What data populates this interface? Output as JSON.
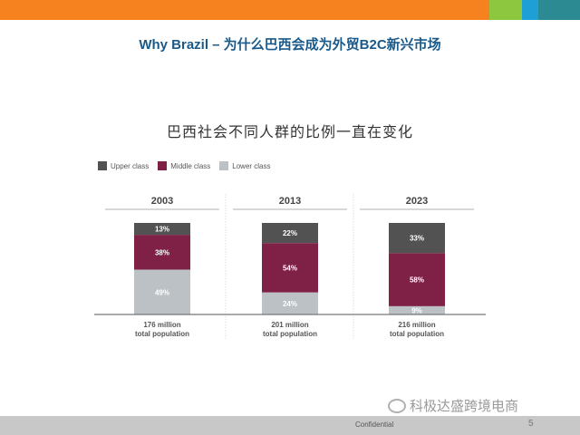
{
  "header": {
    "title": "Why Brazil – 为什么巴西会成为外贸B2C新兴市场"
  },
  "footer": {
    "confidential": "Confidential",
    "page_number": "5"
  },
  "watermark": {
    "text": "科极达盛跨境电商"
  },
  "colors": {
    "upper": "#525252",
    "middle": "#7f2046",
    "lower": "#bcc1c5",
    "topbar": "#f6821f"
  },
  "chart_data": {
    "type": "bar",
    "stacked": true,
    "title": "巴西社会不同人群的比例一直在变化",
    "legend_position": "top-left",
    "legend": [
      "Upper class",
      "Middle class",
      "Lower class"
    ],
    "categories": [
      "2003",
      "2013",
      "2023"
    ],
    "category_notes": [
      "176 million\ntotal population",
      "201 million\ntotal population",
      "216 million\ntotal population"
    ],
    "series": [
      {
        "name": "Upper class",
        "values": [
          13,
          22,
          33
        ]
      },
      {
        "name": "Middle class",
        "values": [
          38,
          54,
          58
        ]
      },
      {
        "name": "Lower class",
        "values": [
          49,
          24,
          9
        ]
      }
    ],
    "labels": [
      [
        "13%",
        "22%",
        "33%"
      ],
      [
        "38%",
        "54%",
        "58%"
      ],
      [
        "49%",
        "24%",
        "9%"
      ]
    ],
    "ylim": [
      0,
      100
    ]
  }
}
